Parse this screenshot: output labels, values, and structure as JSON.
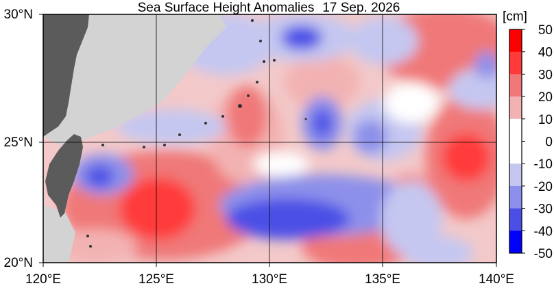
{
  "title": "Sea Surface Height Anomalies",
  "date": "17 Sep. 2026",
  "colorbar": {
    "unit": "[cm]",
    "ticks": [
      "50",
      "40",
      "30",
      "20",
      "10",
      "0",
      "-10",
      "-20",
      "-30",
      "-40",
      "-50"
    ],
    "colors": {
      "pos_max": "#ff0000",
      "pos_high": "#ff3a3a",
      "pos_mid": "#f07878",
      "pos_low": "#f3b2b2",
      "zero": "#ffffff",
      "neg_low": "#c5c7f1",
      "neg_mid": "#8d90ea",
      "neg_high": "#4b4fe6",
      "neg_max": "#0000ff"
    }
  },
  "map": {
    "lat_labels": [
      "30°N",
      "25°N",
      "20°N"
    ],
    "lon_labels": [
      "120°E",
      "125°E",
      "130°E",
      "135°E",
      "140°E"
    ],
    "land_color": "#5b5b5b",
    "nodata_color": "#d3d3d3"
  }
}
